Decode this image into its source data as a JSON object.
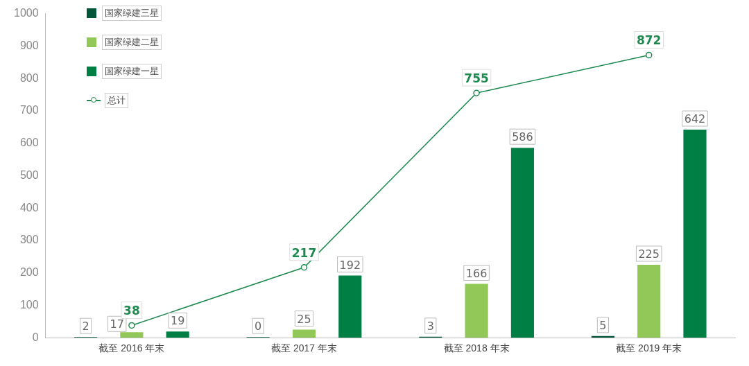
{
  "chart_data": {
    "type": "bar",
    "categories": [
      "截至 2016 年末",
      "截至 2017 年末",
      "截至 2018 年末",
      "截至 2019 年末"
    ],
    "series": [
      {
        "name": "国家绿建三星",
        "color": "#00553a",
        "values": [
          2,
          0,
          3,
          5
        ]
      },
      {
        "name": "国家绿建二星",
        "color": "#92c858",
        "values": [
          17,
          25,
          166,
          225
        ]
      },
      {
        "name": "国家绿建一星",
        "color": "#007f45",
        "values": [
          19,
          192,
          586,
          642
        ]
      },
      {
        "name": "总计",
        "type": "line",
        "color": "#1e8a4f",
        "values": [
          38,
          217,
          755,
          872
        ]
      }
    ],
    "ylim": [
      0,
      1000
    ],
    "yticks": [
      0,
      100,
      200,
      300,
      400,
      500,
      600,
      700,
      800,
      900,
      1000
    ],
    "grid": false,
    "legend": "top left",
    "marker": "circle",
    "data_labels": true
  }
}
